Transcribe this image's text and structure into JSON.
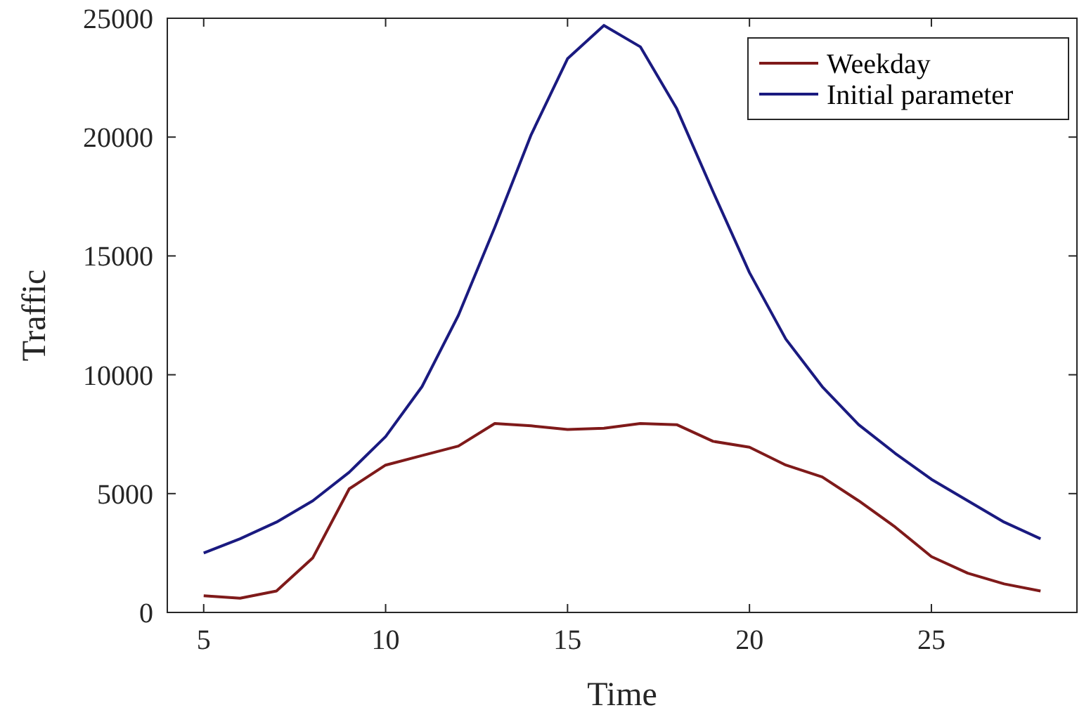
{
  "chart_data": {
    "type": "line",
    "xlabel": "Time",
    "ylabel": "Traffic",
    "x": [
      5,
      6,
      7,
      8,
      9,
      10,
      11,
      12,
      13,
      14,
      15,
      16,
      17,
      18,
      19,
      20,
      21,
      22,
      23,
      24,
      25,
      26,
      27,
      28
    ],
    "xlim": [
      4,
      29
    ],
    "xticks": [
      5,
      10,
      15,
      20,
      25
    ],
    "ylim": [
      0,
      25000
    ],
    "yticks": [
      0,
      5000,
      10000,
      15000,
      20000,
      25000
    ],
    "legend": "top right",
    "grid": false,
    "series": [
      {
        "name": "Weekday",
        "color": "#7f1a1a",
        "values": [
          700,
          600,
          900,
          2300,
          5200,
          6200,
          6600,
          7000,
          7950,
          7850,
          7700,
          7750,
          7950,
          7900,
          7200,
          6950,
          6200,
          5700,
          4700,
          3600,
          2350,
          1650,
          1200,
          900
        ]
      },
      {
        "name": "Initial parameter",
        "color": "#1a1a80",
        "values": [
          2500,
          3100,
          3800,
          4700,
          5900,
          7400,
          9500,
          12500,
          16200,
          20100,
          23300,
          24700,
          23800,
          21200,
          17700,
          14300,
          11500,
          9500,
          7900,
          6700,
          5600,
          4700,
          3800,
          3100
        ]
      }
    ]
  }
}
